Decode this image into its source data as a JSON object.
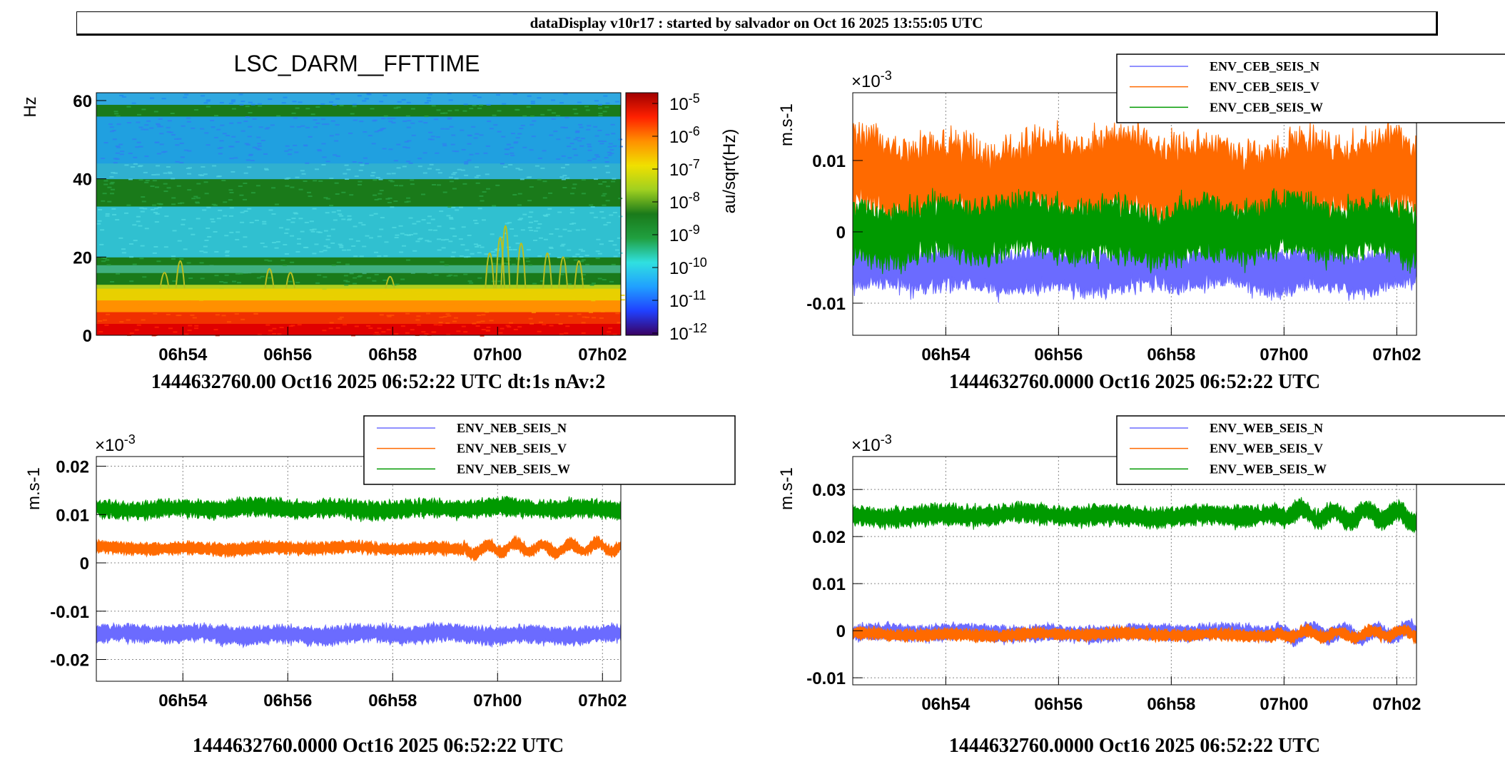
{
  "header": {
    "title": "dataDisplay v10r17 : started by salvador on Oct 16 2025 13:55:05 UTC"
  },
  "colors": {
    "N": "#6b6bff",
    "V": "#ff6a00",
    "W": "#009a00"
  },
  "chart_data": [
    {
      "type": "heatmap",
      "title": "LSC_DARM__FFTTIME",
      "ylabel": "Hz",
      "zlabel": "au/sqrt(Hz)",
      "x_ticks": [
        "06h54",
        "06h56",
        "06h58",
        "07h00",
        "07h02"
      ],
      "y_ticks": [
        0,
        20,
        40,
        60
      ],
      "ylim": [
        0,
        62
      ],
      "z_ticks": [
        {
          "base": "10",
          "exp": "-5"
        },
        {
          "base": "10",
          "exp": "-6"
        },
        {
          "base": "10",
          "exp": "-7"
        },
        {
          "base": "10",
          "exp": "-8"
        },
        {
          "base": "10",
          "exp": "-9"
        },
        {
          "base": "10",
          "exp": "-10"
        },
        {
          "base": "10",
          "exp": "-11"
        },
        {
          "base": "10",
          "exp": "-12"
        }
      ],
      "bands_hz": [
        {
          "lo": 0,
          "hi": 3,
          "level": "red"
        },
        {
          "lo": 3,
          "hi": 6,
          "level": "red"
        },
        {
          "lo": 6,
          "hi": 9,
          "level": "orange"
        },
        {
          "lo": 9,
          "hi": 12,
          "level": "yellow"
        },
        {
          "lo": 13,
          "hi": 16,
          "level": "darkgreen"
        },
        {
          "lo": 18,
          "hi": 20,
          "level": "darkgreen"
        },
        {
          "lo": 33,
          "hi": 40,
          "level": "darkgreen"
        },
        {
          "lo": 56,
          "hi": 59,
          "level": "darkgreen"
        }
      ],
      "footer": "1444632760.00 Oct16 2025 06:52:22 UTC dt:1s nAv:2"
    },
    {
      "type": "line",
      "ylabel": "m.s-1",
      "exponent": {
        "prefix": "×10",
        "exp": "-3"
      },
      "x_ticks": [
        "06h54",
        "06h56",
        "06h58",
        "07h00",
        "07h02"
      ],
      "y_ticks": [
        "0.01",
        "0",
        "-0.01"
      ],
      "y_tick_values": [
        0.01,
        0,
        -0.01
      ],
      "ylim": [
        -0.0145,
        0.0195
      ],
      "series": [
        {
          "name": "ENV_CEB_SEIS_N",
          "key": "N",
          "mean": -0.0053,
          "noise": 0.0022
        },
        {
          "name": "ENV_CEB_SEIS_V",
          "key": "V",
          "mean": 0.0075,
          "noise": 0.0042
        },
        {
          "name": "ENV_CEB_SEIS_W",
          "key": "W",
          "mean": 0.0002,
          "noise": 0.003
        }
      ],
      "footer": "1444632760.0000 Oct16 2025 06:52:22 UTC"
    },
    {
      "type": "line",
      "ylabel": "m.s-1",
      "exponent": {
        "prefix": "×10",
        "exp": "-3"
      },
      "x_ticks": [
        "06h54",
        "06h56",
        "06h58",
        "07h00",
        "07h02"
      ],
      "y_ticks": [
        "0.02",
        "0.01",
        "0",
        "-0.01",
        "-0.02"
      ],
      "y_tick_values": [
        0.02,
        0.01,
        0,
        -0.01,
        -0.02
      ],
      "ylim": [
        -0.0245,
        0.022
      ],
      "series": [
        {
          "name": "ENV_NEB_SEIS_N",
          "key": "N",
          "mean": -0.0148,
          "noise": 0.0013
        },
        {
          "name": "ENV_NEB_SEIS_V",
          "key": "V",
          "mean": 0.003,
          "noise": 0.0009
        },
        {
          "name": "ENV_NEB_SEIS_W",
          "key": "W",
          "mean": 0.0112,
          "noise": 0.0013
        }
      ],
      "footer": "1444632760.0000 Oct16 2025 06:52:22 UTC"
    },
    {
      "type": "line",
      "ylabel": "m.s-1",
      "exponent": {
        "prefix": "×10",
        "exp": "-3"
      },
      "x_ticks": [
        "06h54",
        "06h56",
        "06h58",
        "07h00",
        "07h02"
      ],
      "y_ticks": [
        "0.03",
        "0.02",
        "0.01",
        "0",
        "-0.01"
      ],
      "y_tick_values": [
        0.03,
        0.02,
        0.01,
        0,
        -0.01
      ],
      "ylim": [
        -0.0115,
        0.037
      ],
      "series": [
        {
          "name": "ENV_WEB_SEIS_N",
          "key": "N",
          "mean": -0.0005,
          "noise": 0.0012
        },
        {
          "name": "ENV_WEB_SEIS_V",
          "key": "V",
          "mean": -0.0008,
          "noise": 0.0009
        },
        {
          "name": "ENV_WEB_SEIS_W",
          "key": "W",
          "mean": 0.0245,
          "noise": 0.0015
        }
      ],
      "footer": "1444632760.0000 Oct16 2025 06:52:22 UTC"
    }
  ]
}
